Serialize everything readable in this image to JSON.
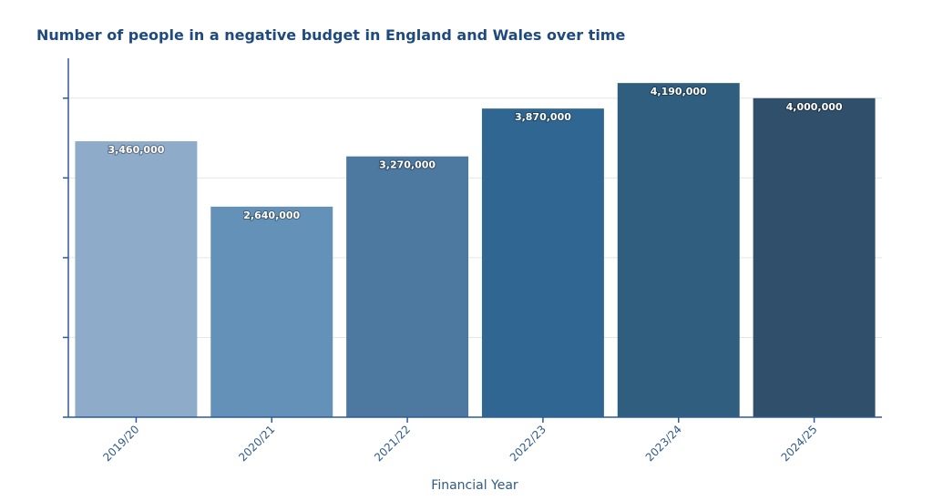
{
  "chart_data": {
    "type": "bar",
    "title": "Number of people in a negative budget in England and Wales over time",
    "xlabel": "Financial Year",
    "ylabel": "",
    "categories": [
      "2019/20",
      "2020/21",
      "2021/22",
      "2022/23",
      "2023/24",
      "2024/25"
    ],
    "values": [
      3460000,
      2640000,
      3270000,
      3870000,
      4190000,
      4000000
    ],
    "data_labels": [
      "3,460,000",
      "2,640,000",
      "3,270,000",
      "3,870,000",
      "4,190,000",
      "4,000,000"
    ],
    "colors": [
      "#8eabc9",
      "#6391b8",
      "#4d789f",
      "#2f6792",
      "#2f5e7e",
      "#2f4f6a"
    ],
    "ylim": [
      0,
      4500000
    ],
    "yticks": [
      1000000,
      2000000,
      3000000,
      4000000
    ],
    "grid": true,
    "axis_color": "#2f5a9a"
  }
}
